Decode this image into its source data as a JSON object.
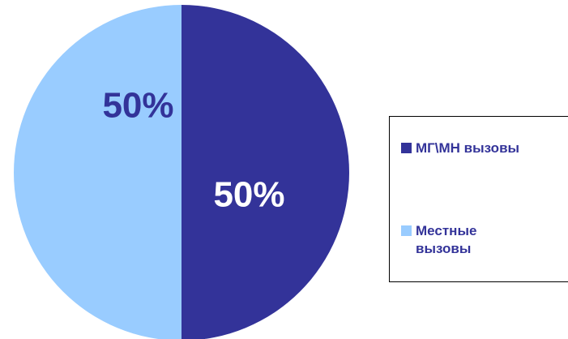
{
  "chart_data": {
    "type": "pie",
    "title": "",
    "slices": [
      {
        "label": "МГ\\МН вызовы",
        "value": 50,
        "display": "50%",
        "color": "#333399",
        "label_color": "#ffffff"
      },
      {
        "label": "Местные вызовы",
        "value": 50,
        "display": "50%",
        "color": "#99ccff",
        "label_color": "#333399"
      }
    ],
    "legend": {
      "position": "right",
      "items": [
        {
          "label": "МГ\\МН вызовы",
          "color": "#333399"
        },
        {
          "label": "Местные вызовы",
          "color": "#99ccff"
        }
      ]
    }
  }
}
